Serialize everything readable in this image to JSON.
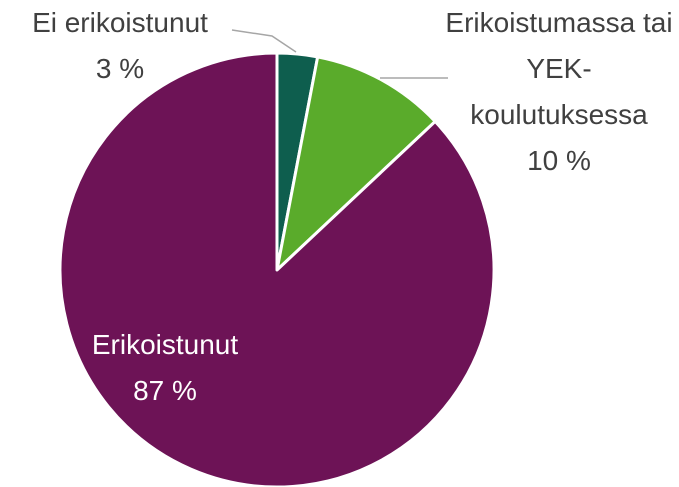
{
  "chart_data": {
    "type": "pie",
    "categories": [
      "Ei erikoistunut",
      "Erikoistumassa tai YEK-koulutuksessa",
      "Erikoistunut"
    ],
    "values": [
      3,
      10,
      87
    ],
    "value_labels": [
      "3 %",
      "10 %",
      "87 %"
    ],
    "colors": [
      "#0e5e4e",
      "#5aab2b",
      "#6d1356"
    ]
  }
}
